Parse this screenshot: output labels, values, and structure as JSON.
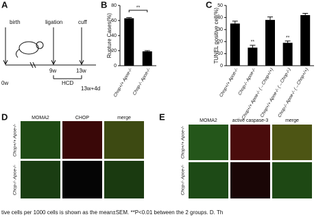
{
  "panels": {
    "a": "A",
    "b": "B",
    "c": "C",
    "d": "D",
    "e": "E"
  },
  "timeline": {
    "events": [
      "birth",
      "ligation",
      "cuff"
    ],
    "times": [
      "0w",
      "9w",
      "13w",
      "13w+4d"
    ],
    "diet": "HCD"
  },
  "micrographs": {
    "d": {
      "columns": [
        "MOMA2",
        "CHOP",
        "merge"
      ],
      "rows": [
        "Chop+/+ Apoe-/-",
        "Chop-/- Apoe-/-"
      ]
    },
    "e": {
      "columns": [
        "MOMA2",
        "active caspase-3",
        "merge"
      ],
      "rows": [
        "Chop+/+ Apoe-/-",
        "Chop-/- Apoe-/-"
      ]
    }
  },
  "caption": "tive cells per 1000 cells is shown as the mean±SEM. **P<0.01 between the 2 groups. D. Th",
  "chart_data": [
    {
      "type": "bar",
      "y_label": "Rupture Cases(%)",
      "categories": [
        "Chop+/+ Apoe-/-",
        "Chop-/- Apoe-/-"
      ],
      "values": [
        63,
        19
      ],
      "errors": [
        1,
        1
      ],
      "color": "#000000",
      "ylim": [
        0,
        80
      ],
      "yticks": [
        0,
        20,
        40,
        60,
        80
      ],
      "bracket": "**"
    },
    {
      "type": "bar",
      "y_label": "TUNEL positive cell(%)",
      "categories": [
        "Chop+/+ Apoe-/-",
        "Chop-/- Apoe-/-",
        "Chop+/+ Apoe-/- (→Chop+/+)",
        "Chop+/+ Apoe-/- (→Chop-/-)",
        "Chop-/- Apoe-/- (→Chop+/+)"
      ],
      "values": [
        35,
        15,
        38,
        19,
        42
      ],
      "errors": [
        2,
        2,
        2.5,
        1.5,
        1.5
      ],
      "significance": [
        null,
        "**",
        null,
        "**",
        null
      ],
      "color": "#000000",
      "ylim": [
        0,
        50
      ],
      "yticks": [
        0,
        10,
        20,
        30,
        40,
        50
      ]
    }
  ]
}
